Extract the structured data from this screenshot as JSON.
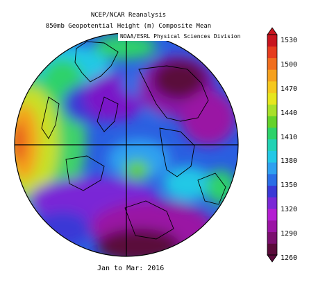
{
  "header": {
    "line1": "NCEP/NCAR Reanalysis",
    "line2": "850mb Geopotential Height (m) Composite Mean"
  },
  "attribution": "NOAA/ESRL Physical Sciences Division",
  "period": "Jan to Mar: 2016",
  "legend": {
    "ticks": [
      "1530",
      "1500",
      "1470",
      "1440",
      "1410",
      "1380",
      "1350",
      "1320",
      "1290",
      "1260"
    ],
    "colors": [
      "#5a0a3a",
      "#7a0f6e",
      "#9a14a4",
      "#b41ed2",
      "#7a28d6",
      "#3a39d6",
      "#2a6ee6",
      "#2fa0f0",
      "#23c8e6",
      "#22d2b4",
      "#2dd26a",
      "#64d22a",
      "#a8e02a",
      "#e6e61e",
      "#f5c81e",
      "#f5a01e",
      "#f06e1e",
      "#e63c1e",
      "#c8141e"
    ]
  }
}
